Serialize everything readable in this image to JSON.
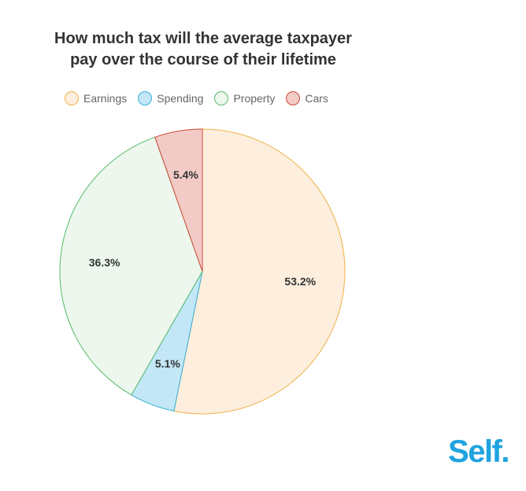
{
  "title_lines": [
    "How much tax will the average taxpayer",
    "pay over the course of their lifetime"
  ],
  "brand": {
    "logo_text": "Self.",
    "color": "#1fa3e0"
  },
  "chart_data": {
    "type": "pie",
    "title": "How much tax will the average taxpayer pay over the course of their lifetime",
    "legend_position": "top",
    "start_angle_deg": 0,
    "direction": "clockwise",
    "slices": [
      {
        "label": "Earnings",
        "value": 53.2,
        "display": "53.2%",
        "fill": "#fdeedd",
        "stroke": "#f0b14a"
      },
      {
        "label": "Spending",
        "value": 5.1,
        "display": "5.1%",
        "fill": "#c3e7f7",
        "stroke": "#36aed6"
      },
      {
        "label": "Property",
        "value": 36.3,
        "display": "36.3%",
        "fill": "#edf7ee",
        "stroke": "#55bb66"
      },
      {
        "label": "Cars",
        "value": 5.4,
        "display": "5.4%",
        "fill": "#f2cbc6",
        "stroke": "#cc4a35"
      }
    ]
  }
}
